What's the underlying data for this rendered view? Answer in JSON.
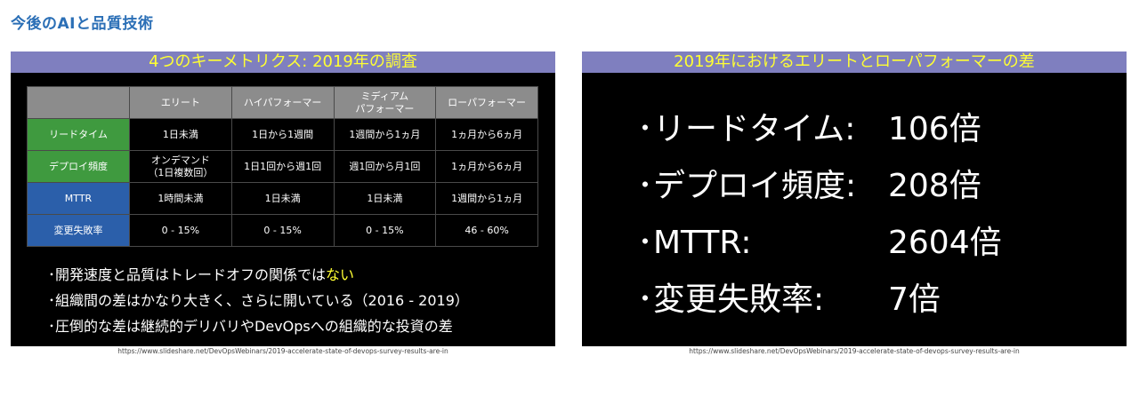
{
  "page": {
    "heading": "今後のAIと品質技術"
  },
  "left_slide": {
    "title": "4つのキーメトリクス: 2019年の調査",
    "table": {
      "columns": [
        "エリート",
        "ハイパフォーマー",
        "ミディアム\nパフォーマー",
        "ローパフォーマー"
      ],
      "rows": [
        {
          "label": "リードタイム",
          "cells": [
            "1日未満",
            "1日から1週間",
            "1週間から1ヵ月",
            "1ヵ月から6ヵ月"
          ]
        },
        {
          "label": "デプロイ頻度",
          "cells": [
            "オンデマンド\n（1日複数回）",
            "1日1回から週1回",
            "週1回から月1回",
            "1ヵ月から6ヵ月"
          ]
        },
        {
          "label": "MTTR",
          "cells": [
            "1時間未満",
            "1日未満",
            "1日未満",
            "1週間から1ヵ月"
          ]
        },
        {
          "label": "変更失敗率",
          "cells": [
            "0 - 15%",
            "0 - 15%",
            "0 - 15%",
            "46 - 60%"
          ]
        }
      ]
    },
    "bullets": {
      "b1_text": "･開発速度と品質はトレードオフの関係では",
      "b1_highlight": "ない",
      "b2": "･組織間の差はかなり大きく、さらに開いている（2016 - 2019）",
      "b3": "･圧倒的な差は継続的デリバリやDevOpsへの組織的な投資の差"
    },
    "source": "https://www.slideshare.net/DevOpsWebinars/2019-accelerate-state-of-devops-survey-results-are-in"
  },
  "right_slide": {
    "title": "2019年におけるエリートとローパフォーマーの差",
    "items": [
      {
        "label": "･リードタイム:",
        "value": "106倍"
      },
      {
        "label": "･デプロイ頻度:",
        "value": "208倍"
      },
      {
        "label": "･MTTR:",
        "value": "2604倍"
      },
      {
        "label": "･変更失敗率:",
        "value": "7倍"
      }
    ],
    "source": "https://www.slideshare.net/DevOpsWebinars/2019-accelerate-state-of-devops-survey-results-are-in"
  }
}
